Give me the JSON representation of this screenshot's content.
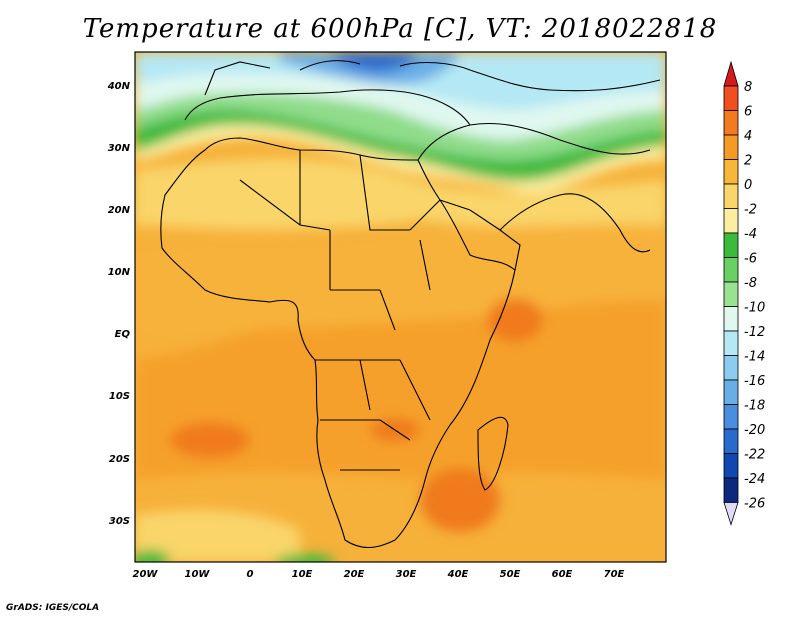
{
  "title": "Temperature at 600hPa [C], VT: 2018022818",
  "footer": "GrADS: IGES/COLA",
  "map": {
    "lat_labels": [
      "40N",
      "30N",
      "20N",
      "10N",
      "EQ",
      "10S",
      "20S",
      "30S"
    ],
    "lon_labels": [
      "20W",
      "10W",
      "0",
      "10E",
      "20E",
      "30E",
      "40E",
      "50E",
      "60E",
      "70E"
    ]
  },
  "colorbar": {
    "labels": [
      "8",
      "6",
      "4",
      "2",
      "0",
      "-2",
      "-4",
      "-6",
      "-8",
      "-10",
      "-12",
      "-14",
      "-16",
      "-18",
      "-20",
      "-22",
      "-24",
      "-26"
    ],
    "colors": [
      "#d7191c",
      "#f05020",
      "#f27a1f",
      "#f59a25",
      "#f7b83a",
      "#f9d56a",
      "#fbeea0",
      "#3cba3c",
      "#68d065",
      "#98e290",
      "#e0f8f0",
      "#b4e8f4",
      "#8cccf0",
      "#6aaee6",
      "#4a8ee0",
      "#2a6acc",
      "#1048b0",
      "#0a2a80",
      "#e0dcf8"
    ]
  }
}
